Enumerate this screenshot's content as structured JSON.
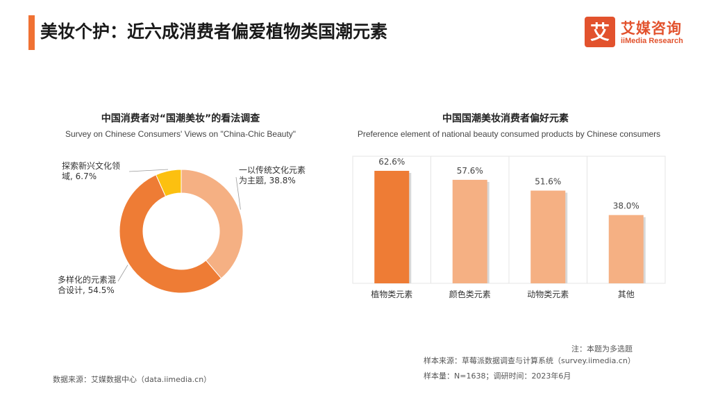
{
  "header": {
    "title": "美妆个护：近六成消费者偏爱植物类国潮元素",
    "logo_cn": "艾媒咨询",
    "logo_en": "iiMedia Research",
    "logo_mark_char": "艾",
    "accent_color": "#f07133"
  },
  "chart_data": [
    {
      "type": "pie",
      "title": "中国消费者对“国潮美妆”的看法调查",
      "subtitle": "Survey on Chinese Consumers' Views on \"China-Chic Beauty\"",
      "slices": [
        {
          "label": [
            "一以传统文化元素",
            "为主题, 38.8%"
          ],
          "value": 38.8,
          "color": "#f5b083"
        },
        {
          "label": [
            "多样化的元素混",
            "合设计, 54.5%"
          ],
          "value": 54.5,
          "color": "#ee7c35"
        },
        {
          "label": [
            "探索新兴文化领",
            "域, 6.7%"
          ],
          "value": 6.7,
          "color": "#fcc010"
        }
      ]
    },
    {
      "type": "bar",
      "title": "中国国潮美妆消费者偏好元素",
      "subtitle": "Preference element of national beauty consumed products by Chinese consumers",
      "categories": [
        "植物类元素",
        "颜色类元素",
        "动物类元素",
        "其他"
      ],
      "values": [
        62.6,
        57.6,
        51.6,
        38.0
      ],
      "data_labels": [
        "62.6%",
        "57.6%",
        "51.6%",
        "38.0%"
      ],
      "colors": [
        "#ee7c35",
        "#f5b083",
        "#f5b083",
        "#f5b083"
      ],
      "ylim": [
        0,
        70
      ]
    }
  ],
  "footer": {
    "left_source": "数据来源：艾媒数据中心（data.iimedia.cn）",
    "note": "注：本题为多选题",
    "sample_source": "样本来源：草莓派数据调查与计算系统（survey.iimedia.cn）",
    "sample_size": "样本量：N=1638；调研时间：2023年6月"
  }
}
